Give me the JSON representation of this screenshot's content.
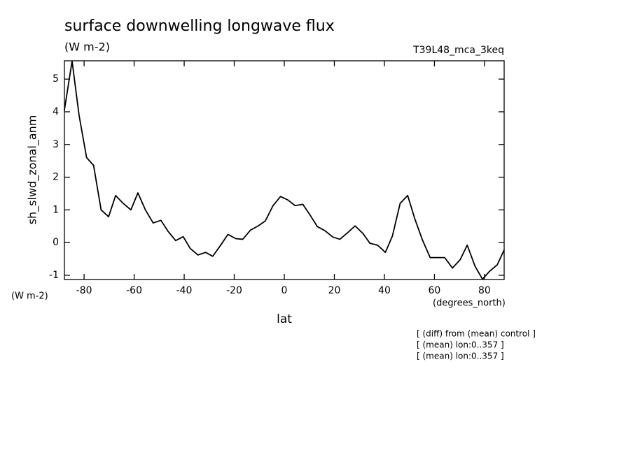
{
  "chart_data": {
    "type": "line",
    "title": "surface downwelling longwave flux",
    "subtitle": "(W m-2)",
    "run_label": "T39L48_mca_3keq",
    "ylabel": "sh_slwd_zonal_anm",
    "y_units": "(W m-2)",
    "xlabel": "lat",
    "x_units": "(degrees_north)",
    "notes": [
      "[ (diff) from (mean) control ]",
      "[ (mean) lon:0..357 ]",
      "[ (mean) lon:0..357 ]"
    ],
    "xlim": [
      -87.86,
      87.86
    ],
    "ylim": [
      -1.13,
      5.56
    ],
    "xticks": [
      -80,
      -60,
      -40,
      -20,
      0,
      20,
      40,
      60,
      80
    ],
    "yticks": [
      -1,
      0,
      1,
      2,
      3,
      4,
      5
    ],
    "x": [
      -87.9,
      -84.8,
      -82.0,
      -79.0,
      -76.2,
      -73.2,
      -70.2,
      -67.4,
      -64.4,
      -61.3,
      -58.5,
      -55.5,
      -52.4,
      -49.3,
      -46.5,
      -43.4,
      -40.4,
      -37.6,
      -34.5,
      -31.4,
      -28.6,
      -25.6,
      -22.5,
      -19.4,
      -16.6,
      -13.5,
      -10.4,
      -7.6,
      -4.5,
      -1.5,
      1.5,
      4.3,
      7.4,
      10.4,
      13.2,
      16.3,
      19.4,
      22.2,
      25.3,
      28.3,
      31.4,
      34.2,
      37.3,
      40.4,
      43.2,
      46.3,
      49.3,
      52.1,
      55.2,
      58.3,
      61.3,
      64.1,
      67.2,
      70.3,
      73.1,
      76.2,
      79.2,
      82.0,
      85.1,
      87.9
    ],
    "series": [
      {
        "name": "sh_slwd_zonal_anm",
        "color": "#000000",
        "values": [
          4.04,
          5.55,
          3.89,
          2.6,
          2.36,
          1.0,
          0.79,
          1.44,
          1.2,
          1.0,
          1.52,
          1.0,
          0.6,
          0.68,
          0.35,
          0.06,
          0.18,
          -0.18,
          -0.38,
          -0.3,
          -0.42,
          -0.1,
          0.25,
          0.12,
          0.1,
          0.38,
          0.51,
          0.66,
          1.13,
          1.41,
          1.3,
          1.13,
          1.17,
          0.83,
          0.49,
          0.36,
          0.17,
          0.1,
          0.3,
          0.51,
          0.28,
          -0.02,
          -0.08,
          -0.3,
          0.2,
          1.2,
          1.44,
          0.74,
          0.08,
          -0.46,
          -0.46,
          -0.46,
          -0.78,
          -0.52,
          -0.08,
          -0.72,
          -1.12,
          -0.88,
          -0.68,
          -0.22
        ]
      }
    ]
  }
}
